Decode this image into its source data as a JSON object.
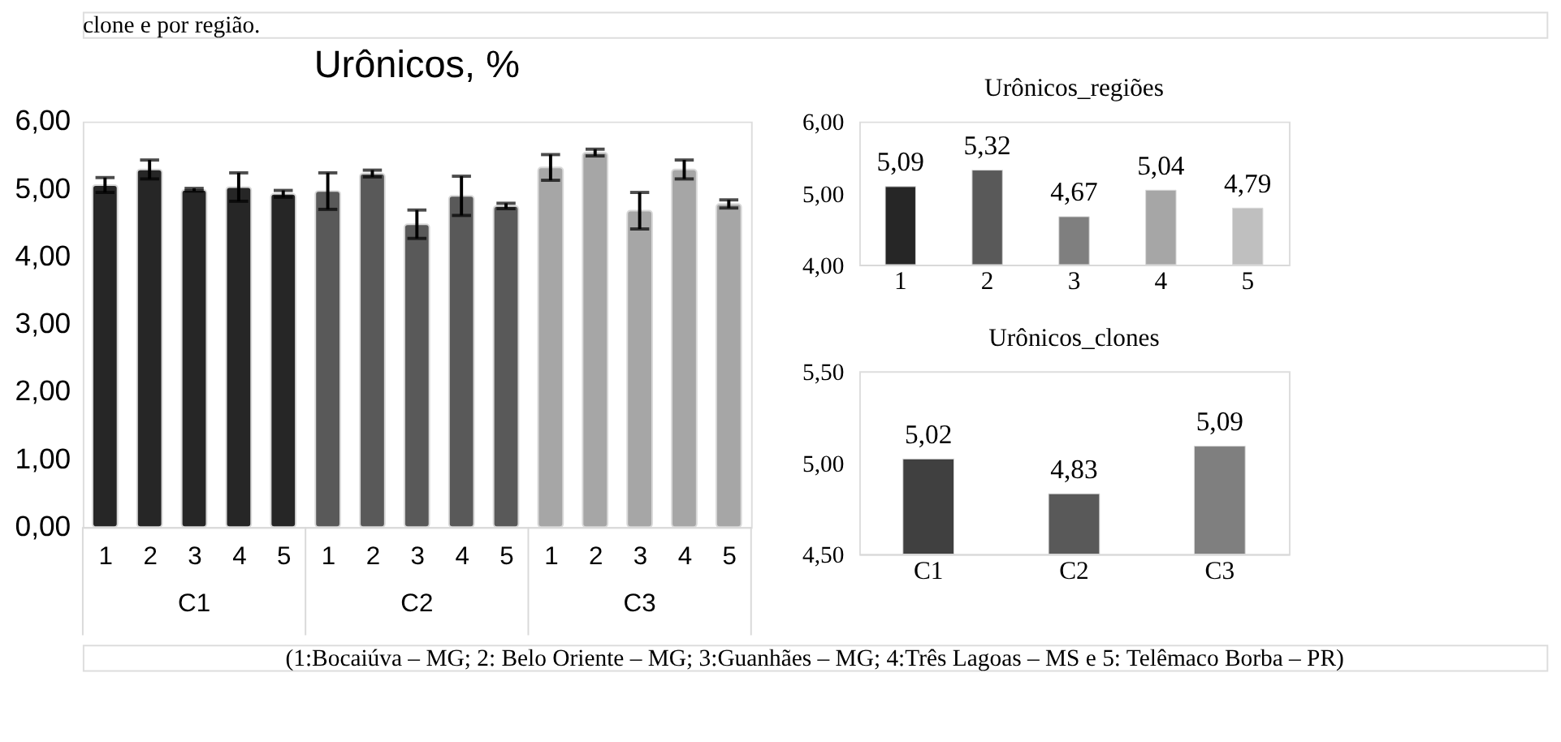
{
  "chart_data": [
    {
      "type": "bar",
      "title": "Urônicos, %",
      "categories": [
        "1",
        "2",
        "3",
        "4",
        "5",
        "1",
        "2",
        "3",
        "4",
        "5",
        "1",
        "2",
        "3",
        "4",
        "5"
      ],
      "values": [
        5.06,
        5.29,
        4.99,
        5.03,
        4.93,
        4.97,
        5.23,
        4.48,
        4.9,
        4.75,
        5.32,
        5.54,
        4.68,
        5.29,
        4.78
      ],
      "errors": [
        0.11,
        0.14,
        0.02,
        0.21,
        0.05,
        0.27,
        0.05,
        0.21,
        0.29,
        0.04,
        0.19,
        0.05,
        0.27,
        0.14,
        0.06
      ],
      "colors": [
        "#262626",
        "#262626",
        "#262626",
        "#262626",
        "#262626",
        "#595959",
        "#595959",
        "#595959",
        "#595959",
        "#595959",
        "#a6a6a6",
        "#a6a6a6",
        "#a6a6a6",
        "#a6a6a6",
        "#a6a6a6"
      ],
      "ylim": [
        0,
        6
      ],
      "yticks": [
        {
          "value": 0,
          "label": "0,00"
        },
        {
          "value": 1,
          "label": "1,00"
        },
        {
          "value": 2,
          "label": "2,00"
        },
        {
          "value": 3,
          "label": "3,00"
        },
        {
          "value": 4,
          "label": "4,00"
        },
        {
          "value": 5,
          "label": "5,00"
        },
        {
          "value": 6,
          "label": "6,00"
        }
      ],
      "annotations": [
        "clone e por região.",
        "C1",
        "C2",
        "C3",
        "(1:Bocaiúva – MG; 2: Belo Oriente – MG; 3:Guanhães – MG; 4:Três Lagoas – MS e 5: Telêmaco Borba – PR)"
      ]
    },
    {
      "type": "bar",
      "title": "Urônicos_regiões",
      "categories": [
        "1",
        "2",
        "3",
        "4",
        "5"
      ],
      "values": [
        5.09,
        5.32,
        4.67,
        5.04,
        4.79
      ],
      "colors": [
        "#262626",
        "#595959",
        "#7f7f7f",
        "#a6a6a6",
        "#bfbfbf"
      ],
      "value_labels": [
        "5,09",
        "5,32",
        "4,67",
        "5,04",
        "4,79"
      ],
      "ylim": [
        4,
        6
      ],
      "yticks": [
        {
          "value": 4,
          "label": "4,00"
        },
        {
          "value": 5,
          "label": "5,00"
        },
        {
          "value": 6,
          "label": "6,00"
        }
      ]
    },
    {
      "type": "bar",
      "title": "Urônicos_clones",
      "categories": [
        "C1",
        "C2",
        "C3"
      ],
      "values": [
        5.02,
        4.83,
        5.09
      ],
      "colors": [
        "#404040",
        "#595959",
        "#7f7f7f"
      ],
      "value_labels": [
        "5,02",
        "4,83",
        "5,09"
      ],
      "ylim": [
        4.5,
        5.5
      ],
      "yticks": [
        {
          "value": 4.5,
          "label": "4,50"
        },
        {
          "value": 5,
          "label": "5,00"
        },
        {
          "value": 5.5,
          "label": "5,50"
        }
      ]
    }
  ]
}
